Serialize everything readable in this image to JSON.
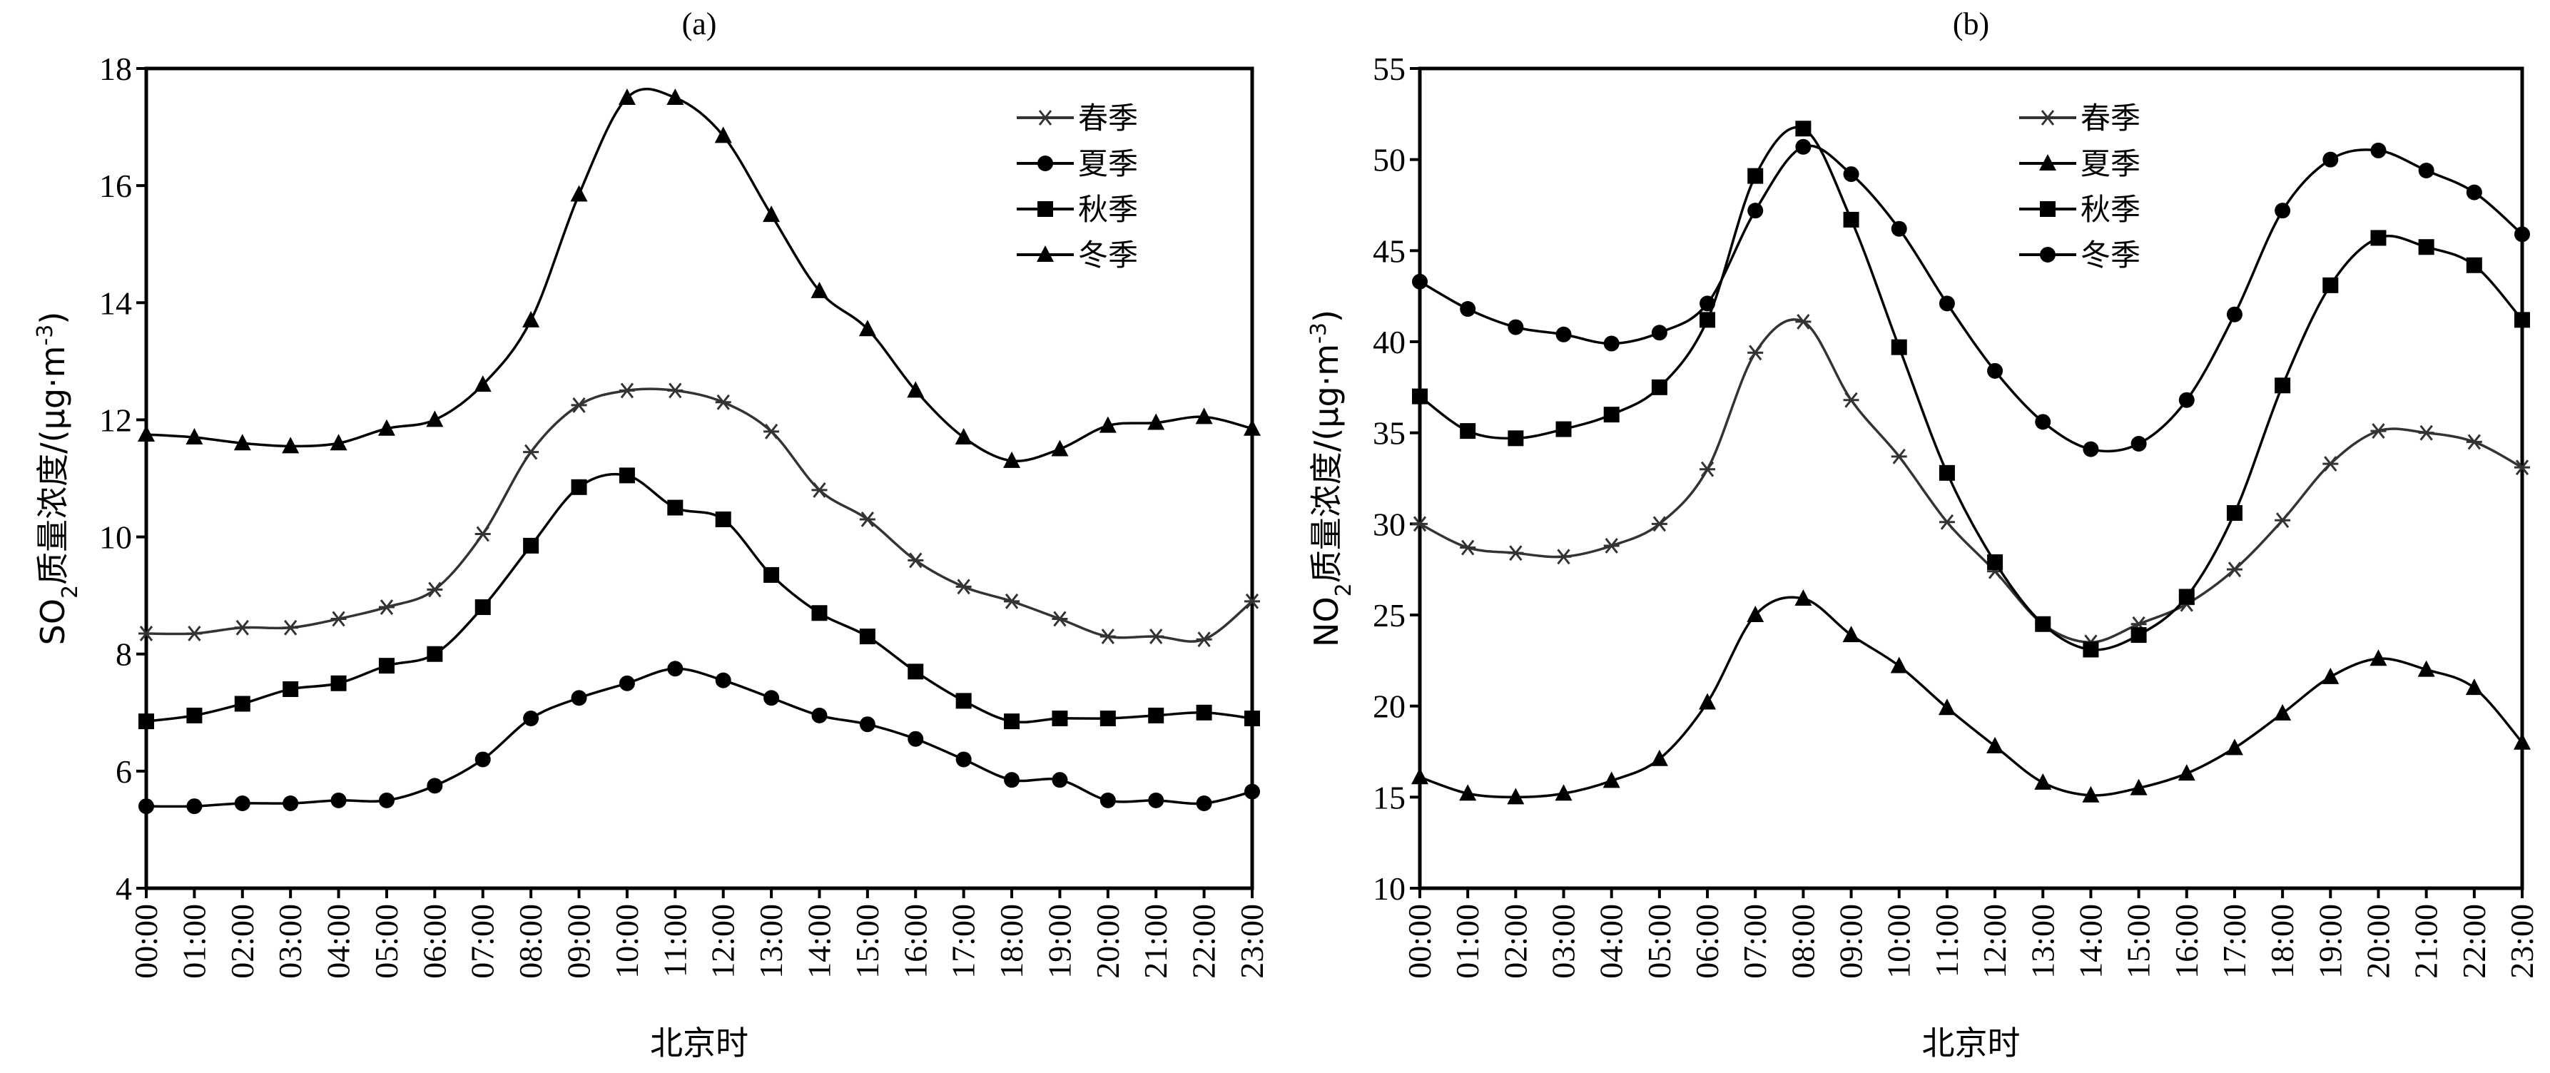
{
  "chart_data": [
    {
      "type": "line",
      "title": "(a)",
      "xlabel": "北京时",
      "ylabel": "SO2质量浓度/(μg·m-3)",
      "ylabel_parts": {
        "pre": "SO",
        "sub": "2",
        "mid": "质量浓度/(μg·m",
        "sup": "-3",
        "post": ")"
      },
      "ylim": [
        4,
        18
      ],
      "yticks": [
        4,
        6,
        8,
        10,
        12,
        14,
        16,
        18
      ],
      "legend_position": "top-right",
      "categories": [
        "00:00",
        "01:00",
        "02:00",
        "03:00",
        "04:00",
        "05:00",
        "06:00",
        "07:00",
        "08:00",
        "09:00",
        "10:00",
        "11:00",
        "12:00",
        "13:00",
        "14:00",
        "15:00",
        "16:00",
        "17:00",
        "18:00",
        "19:00",
        "20:00",
        "21:00",
        "22:00",
        "23:00"
      ],
      "series": [
        {
          "name": "春季",
          "marker": "star",
          "color": "#333333",
          "values": [
            8.35,
            8.35,
            8.45,
            8.45,
            8.6,
            8.8,
            9.1,
            10.05,
            11.45,
            12.25,
            12.5,
            12.5,
            12.3,
            11.8,
            10.8,
            10.3,
            9.6,
            9.15,
            8.9,
            8.6,
            8.3,
            8.3,
            8.25,
            8.9
          ]
        },
        {
          "name": "夏季",
          "marker": "circle",
          "color": "#000000",
          "values": [
            5.4,
            5.4,
            5.45,
            5.45,
            5.5,
            5.5,
            5.75,
            6.2,
            6.9,
            7.25,
            7.5,
            7.75,
            7.55,
            7.25,
            6.95,
            6.8,
            6.55,
            6.2,
            5.85,
            5.85,
            5.5,
            5.5,
            5.45,
            5.65
          ]
        },
        {
          "name": "秋季",
          "marker": "square",
          "color": "#000000",
          "values": [
            6.85,
            6.95,
            7.15,
            7.4,
            7.5,
            7.8,
            8.0,
            8.8,
            9.85,
            10.85,
            11.05,
            10.5,
            10.3,
            9.35,
            8.7,
            8.3,
            7.7,
            7.2,
            6.85,
            6.9,
            6.9,
            6.95,
            7.0,
            6.9
          ]
        },
        {
          "name": "冬季",
          "marker": "triangle",
          "color": "#000000",
          "values": [
            11.75,
            11.7,
            11.6,
            11.55,
            11.6,
            11.85,
            12.0,
            12.6,
            13.7,
            15.85,
            17.5,
            17.5,
            16.85,
            15.5,
            14.2,
            13.55,
            12.5,
            11.7,
            11.3,
            11.5,
            11.9,
            11.95,
            12.05,
            11.85
          ]
        }
      ]
    },
    {
      "type": "line",
      "title": "(b)",
      "xlabel": "北京时",
      "ylabel": "NO2质量浓度/(μg·m-3)",
      "ylabel_parts": {
        "pre": "NO",
        "sub": "2",
        "mid": "质量浓度/(μg·m",
        "sup": "-3",
        "post": ")"
      },
      "ylim": [
        10,
        55
      ],
      "yticks": [
        10,
        15,
        20,
        25,
        30,
        35,
        40,
        45,
        50,
        55
      ],
      "legend_position": "top-center",
      "categories": [
        "00:00",
        "01:00",
        "02:00",
        "03:00",
        "04:00",
        "05:00",
        "06:00",
        "07:00",
        "08:00",
        "09:00",
        "10:00",
        "11:00",
        "12:00",
        "13:00",
        "14:00",
        "15:00",
        "16:00",
        "17:00",
        "18:00",
        "19:00",
        "20:00",
        "21:00",
        "22:00",
        "23:00"
      ],
      "series": [
        {
          "name": "春季",
          "marker": "star",
          "color": "#333333",
          "values": [
            30,
            28.7,
            28.4,
            28.2,
            28.8,
            30,
            33,
            39.4,
            41.1,
            36.8,
            33.7,
            30.1,
            27.4,
            24.5,
            23.5,
            24.5,
            25.6,
            27.5,
            30.2,
            33.3,
            35.1,
            35.0,
            34.5,
            33.1
          ]
        },
        {
          "name": "夏季",
          "marker": "triangle",
          "color": "#000000",
          "values": [
            16.1,
            15.2,
            15.0,
            15.2,
            15.9,
            17.1,
            20.2,
            25.0,
            25.9,
            23.9,
            22.2,
            19.9,
            17.8,
            15.8,
            15.1,
            15.5,
            16.3,
            17.7,
            19.6,
            21.6,
            22.6,
            22.0,
            21.0,
            18.0
          ]
        },
        {
          "name": "秋季",
          "marker": "square",
          "color": "#000000",
          "values": [
            37,
            35.1,
            34.7,
            35.2,
            36.0,
            37.5,
            41.2,
            49.1,
            51.7,
            46.7,
            39.7,
            32.8,
            27.9,
            24.5,
            23.1,
            23.9,
            26.0,
            30.6,
            37.6,
            43.1,
            45.7,
            45.2,
            44.2,
            41.2
          ]
        },
        {
          "name": "冬季",
          "marker": "circle",
          "color": "#000000",
          "values": [
            43.3,
            41.8,
            40.8,
            40.4,
            39.9,
            40.5,
            42.1,
            47.2,
            50.7,
            49.2,
            46.2,
            42.1,
            38.4,
            35.6,
            34.1,
            34.4,
            36.8,
            41.5,
            47.2,
            50.0,
            50.5,
            49.4,
            48.2,
            45.9
          ]
        }
      ]
    }
  ]
}
